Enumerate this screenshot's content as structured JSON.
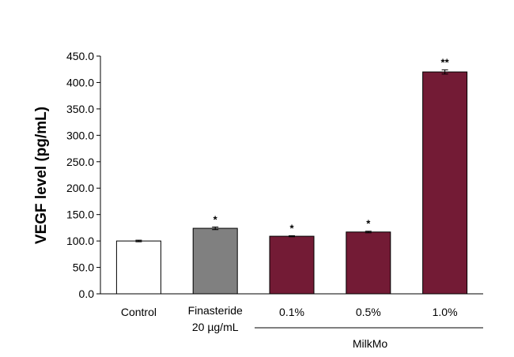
{
  "chart_data": {
    "type": "bar",
    "title": "",
    "ylabel": "VEGF level (pg/mL)",
    "xlabel": "",
    "ylim": [
      0,
      450
    ],
    "ytick_step": 50,
    "ytick_labels": [
      "0.0",
      "50.0",
      "100.0",
      "150.0",
      "200.0",
      "250.0",
      "300.0",
      "350.0",
      "400.0",
      "450.0"
    ],
    "categories": [
      {
        "lines": [
          "Control"
        ]
      },
      {
        "lines": [
          "Finasteride",
          "20 µg/mL"
        ]
      },
      {
        "lines": [
          "0.1%"
        ]
      },
      {
        "lines": [
          "0.5%"
        ]
      },
      {
        "lines": [
          "1.0%"
        ]
      }
    ],
    "values": [
      100,
      124,
      109,
      117,
      420
    ],
    "errors": [
      1.5,
      2.5,
      1.0,
      1.5,
      4.0
    ],
    "significance": [
      "",
      "*",
      "*",
      "*",
      "**"
    ],
    "colors": [
      "#ffffff",
      "#808080",
      "#731b35",
      "#731b35",
      "#731b35"
    ],
    "group_label": "MilkMo"
  }
}
